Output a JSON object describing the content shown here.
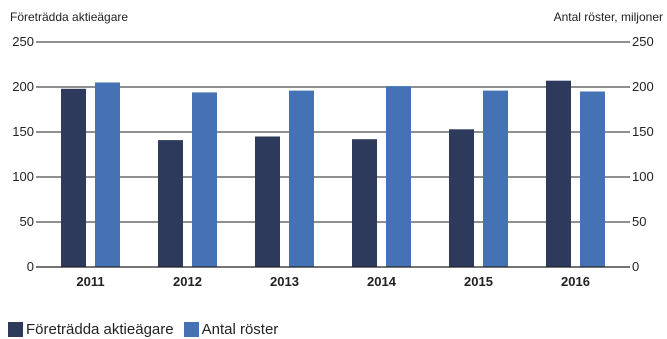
{
  "chart_data": {
    "type": "bar",
    "title": "",
    "left_axis_label": "Företrädda aktieägare",
    "right_axis_label": "Antal röster, miljoner",
    "categories": [
      "2011",
      "2012",
      "2013",
      "2014",
      "2015",
      "2016"
    ],
    "ylim": [
      0,
      250
    ],
    "yticks": [
      "0",
      "50",
      "100",
      "150",
      "200",
      "250"
    ],
    "y2lim": [
      0,
      250
    ],
    "y2ticks": [
      "0",
      "50",
      "100",
      "150",
      "200",
      "250"
    ],
    "grid": true,
    "legend_position": "bottom-left",
    "series": [
      {
        "name": "Företrädda aktieägare",
        "axis": "left",
        "color": "#2e3a5c",
        "values": [
          198,
          141,
          145,
          142,
          153,
          207
        ]
      },
      {
        "name": "Antal röster",
        "axis": "right",
        "color": "#4472b4",
        "values": [
          205,
          194,
          196,
          201,
          196,
          195
        ]
      }
    ]
  }
}
